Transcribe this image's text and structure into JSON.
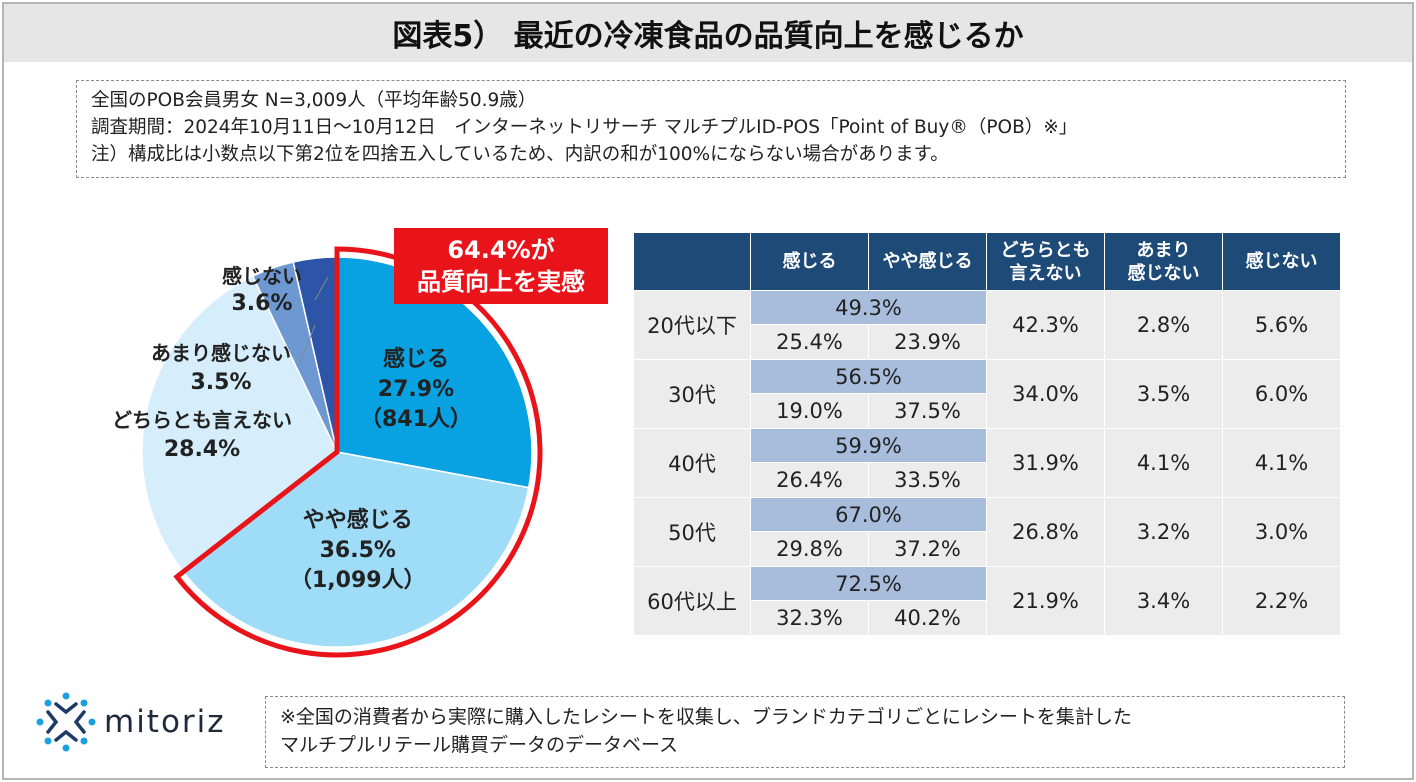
{
  "title": "図表5） 最近の冷凍食品の品質向上を感じるか",
  "notes": [
    "全国のPOB会員男女 N=3,009人（平均年齢50.9歳）",
    "調査期間：2024年10月11日～10月12日　インターネットリサーチ マルチプルID-POS「Point of Buy®（POB）※」",
    "注）構成比は小数点以下第2位を四捨五入しているため、内訳の和が100%にならない場合があります。"
  ],
  "callout": {
    "line1": "64.4%が",
    "line2": "品質向上を実感"
  },
  "chart_data": [
    {
      "type": "pie",
      "title": "",
      "slices": [
        {
          "name": "感じる",
          "value": 27.9,
          "count": "(841人)",
          "color": "#08a1e2",
          "highlight": true
        },
        {
          "name": "やや感じる",
          "value": 36.5,
          "count": "(1,099人)",
          "color": "#9fdcf8",
          "highlight": true
        },
        {
          "name": "どちらとも言えない",
          "value": 28.4,
          "count": "",
          "color": "#d6eefb",
          "highlight": false
        },
        {
          "name": "あまり感じない",
          "value": 3.5,
          "count": "",
          "color": "#6d98d2",
          "highlight": false
        },
        {
          "name": "感じない",
          "value": 3.6,
          "count": "",
          "color": "#2c55a8",
          "highlight": false
        }
      ],
      "labels": {
        "kanjiru": {
          "name": "感じる",
          "pct": "27.9%",
          "count": "（841人）"
        },
        "yaya": {
          "name": "やや感じる",
          "pct": "36.5%",
          "count": "（1,099人）"
        },
        "dochira": {
          "name": "どちらとも言えない",
          "pct": "28.4%"
        },
        "amari": {
          "name": "あまり感じない",
          "pct": "3.5%"
        },
        "kanjinai": {
          "name": "感じない",
          "pct": "3.6%"
        }
      },
      "highlight_color": "#e9141a"
    },
    {
      "type": "table",
      "headers": [
        "",
        "感じる",
        "やや感じる",
        "どちらとも\n言えない",
        "あまり\n感じない",
        "感じない"
      ],
      "header_lines": {
        "kanjiru": "感じる",
        "yaya": "やや感じる",
        "dochira1": "どちらとも",
        "dochira2": "言えない",
        "amari1": "あまり",
        "amari2": "感じない",
        "kanjinai": "感じない"
      },
      "rows": [
        {
          "age": "20代以下",
          "combined": "49.3%",
          "kanjiru": "25.4%",
          "yaya": "23.9%",
          "dochira": "42.3%",
          "amari": "2.8%",
          "kanjinai": "5.6%"
        },
        {
          "age": "30代",
          "combined": "56.5%",
          "kanjiru": "19.0%",
          "yaya": "37.5%",
          "dochira": "34.0%",
          "amari": "3.5%",
          "kanjinai": "6.0%"
        },
        {
          "age": "40代",
          "combined": "59.9%",
          "kanjiru": "26.4%",
          "yaya": "33.5%",
          "dochira": "31.9%",
          "amari": "4.1%",
          "kanjinai": "4.1%"
        },
        {
          "age": "50代",
          "combined": "67.0%",
          "kanjiru": "29.8%",
          "yaya": "37.2%",
          "dochira": "26.8%",
          "amari": "3.2%",
          "kanjinai": "3.0%"
        },
        {
          "age": "60代以上",
          "combined": "72.5%",
          "kanjiru": "32.3%",
          "yaya": "40.2%",
          "dochira": "21.9%",
          "amari": "3.4%",
          "kanjinai": "2.2%"
        }
      ]
    }
  ],
  "logo": {
    "name": "mitoriz",
    "color": "#1e3a66",
    "dot_color": "#1aa0e0"
  },
  "footnote": [
    "※全国の消費者から実際に購入したレシートを収集し、ブランドカテゴリごとにレシートを集計した",
    "マルチプルリテール購買データのデータベース"
  ]
}
